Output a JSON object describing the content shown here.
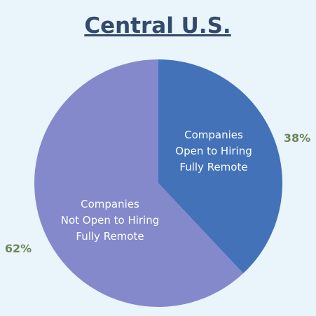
{
  "chart_data": {
    "type": "pie",
    "title": "Central U.S.",
    "slices": [
      {
        "label_lines": [
          "Companies",
          "Open to Hiring",
          "Fully Remote"
        ],
        "value": 38,
        "value_label": "38%",
        "color": "#4372b9"
      },
      {
        "label_lines": [
          "Companies",
          "Not Open to Hiring",
          "Fully Remote"
        ],
        "value": 62,
        "value_label": "62%",
        "color": "#8489cc"
      }
    ],
    "start_angle_deg": 0,
    "direction": "clockwise"
  },
  "colors": {
    "background": "#eaf5fb",
    "title": "#334a6e",
    "percent_label": "#6b8756",
    "slice_label": "#ffffff"
  }
}
